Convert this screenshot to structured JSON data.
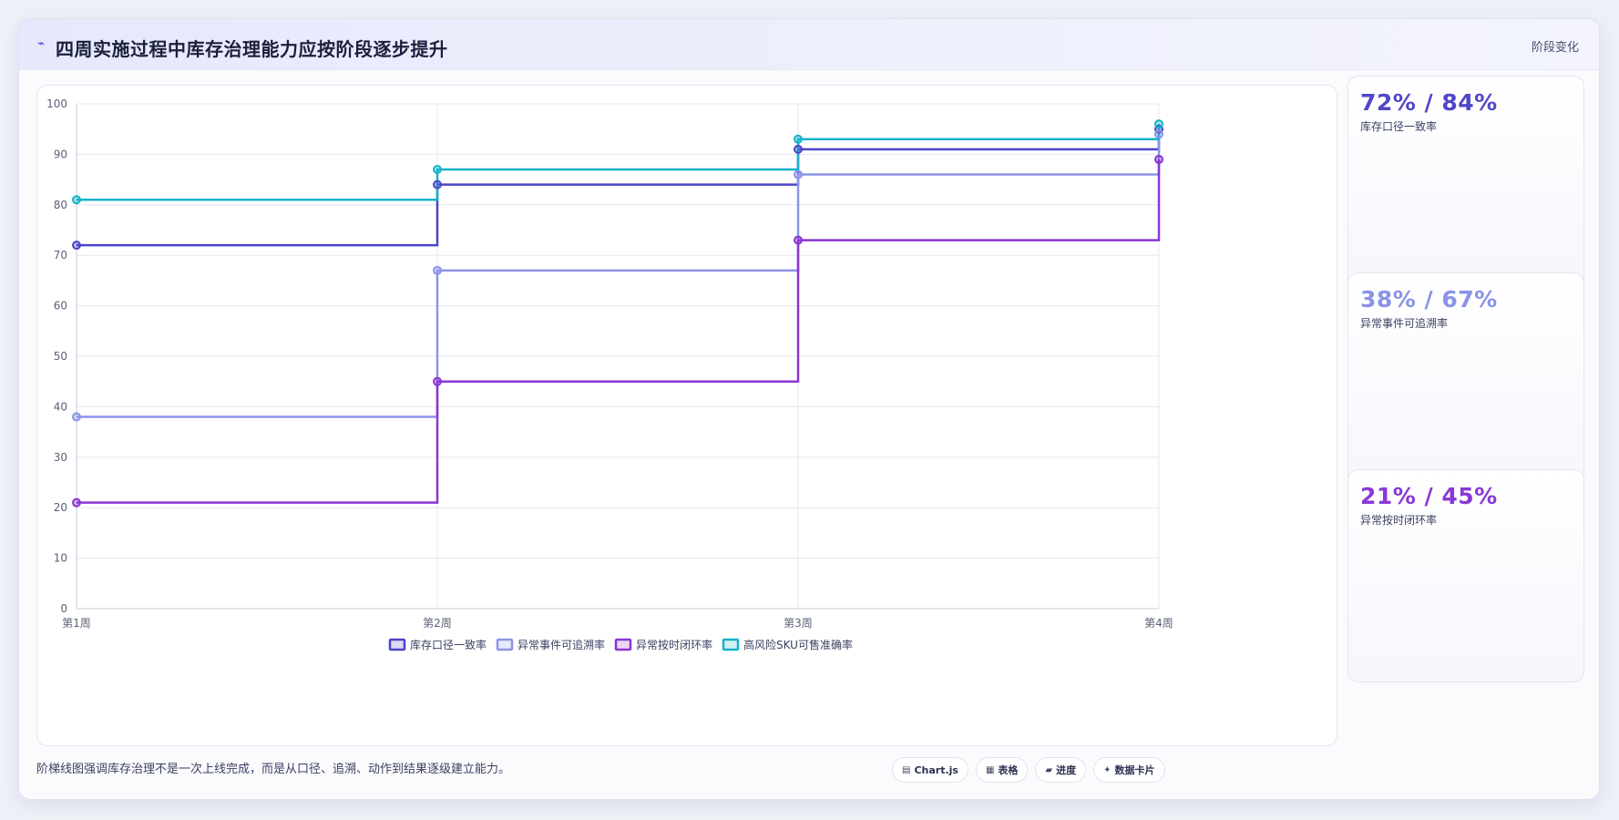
{
  "header": {
    "icon": "trend-icon",
    "title": "四周实施过程中库存治理能力应按阶段逐步提升",
    "tag": "阶段变化"
  },
  "footer": {
    "text": "阶梯线图强调库存治理不是一次上线完成，而是从口径、追溯、动作到结果逐级建立能力。"
  },
  "chips": [
    {
      "icon": "chart-icon",
      "glyph": "▤",
      "label": "Chart.js"
    },
    {
      "icon": "table-icon",
      "glyph": "▦",
      "label": "表格"
    },
    {
      "icon": "progress-icon",
      "glyph": "▰",
      "label": "进度"
    },
    {
      "icon": "card-icon",
      "glyph": "✦",
      "label": "数据卡片"
    }
  ],
  "cards": [
    {
      "value": "72% / 84%",
      "label": "库存口径一致率",
      "color": "#4f46c9"
    },
    {
      "value": "38% / 67%",
      "label": "异常事件可追溯率",
      "color": "#8a93e6"
    },
    {
      "value": "21% / 45%",
      "label": "异常按时闭环率",
      "color": "#8a38d6"
    }
  ],
  "chart_data": {
    "type": "line",
    "stepped": true,
    "categories": [
      "第1周",
      "第2周",
      "第3周",
      "第4周"
    ],
    "ylim": [
      0,
      100
    ],
    "yticks": [
      0,
      10,
      20,
      30,
      40,
      50,
      60,
      70,
      80,
      90,
      100
    ],
    "grid": true,
    "legend_position": "bottom",
    "series": [
      {
        "name": "库存口径一致率",
        "values": [
          72,
          84,
          91,
          95
        ],
        "color": "#4a44c8"
      },
      {
        "name": "异常事件可追溯率",
        "values": [
          38,
          67,
          86,
          94
        ],
        "color": "#8b94e8"
      },
      {
        "name": "异常按时闭环率",
        "values": [
          21,
          45,
          73,
          89
        ],
        "color": "#8b35d4"
      },
      {
        "name": "高风险SKU可售准确率",
        "values": [
          81,
          87,
          93,
          96
        ],
        "color": "#14b3c8"
      }
    ]
  }
}
